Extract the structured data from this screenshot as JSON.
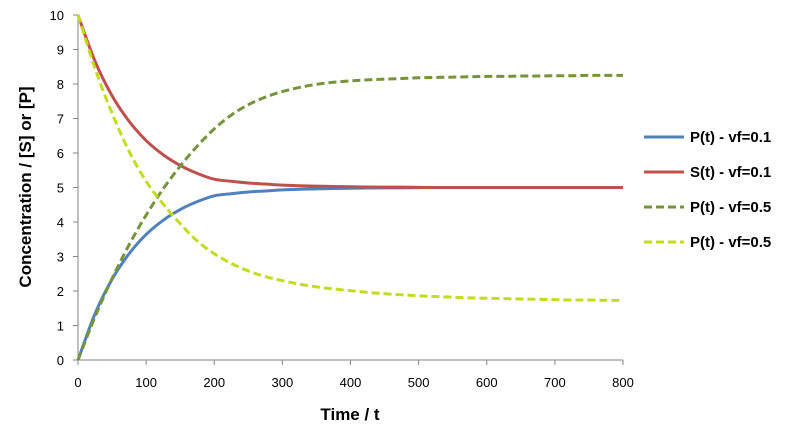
{
  "chart_data": {
    "type": "line",
    "title": "",
    "xlabel": "Time / t",
    "ylabel": "Concentration / [S] or [P]",
    "xlim": [
      0,
      800
    ],
    "ylim": [
      0,
      10
    ],
    "xticks": [
      0,
      100,
      200,
      300,
      400,
      500,
      600,
      700,
      800
    ],
    "yticks": [
      0,
      1,
      2,
      3,
      4,
      5,
      6,
      7,
      8,
      9,
      10
    ],
    "grid": false,
    "legend_position": "right",
    "x": [
      0,
      25,
      50,
      75,
      100,
      125,
      150,
      175,
      200,
      225,
      250,
      275,
      300,
      325,
      350,
      375,
      400,
      425,
      450,
      475,
      500,
      525,
      550,
      575,
      600,
      625,
      650,
      675,
      700,
      725,
      750,
      775,
      800
    ],
    "series": [
      {
        "name": "P(t) - vf=0.1",
        "color": "#4f81bd",
        "dash": "solid",
        "values": [
          0,
          1.34,
          2.34,
          3.08,
          3.64,
          4.05,
          4.36,
          4.59,
          4.76,
          4.82,
          4.87,
          4.9,
          4.93,
          4.95,
          4.96,
          4.97,
          4.98,
          4.985,
          4.99,
          4.99,
          4.995,
          5.0,
          5.0,
          5.0,
          5.0,
          5.0,
          5.0,
          5.0,
          5.0,
          5.0,
          5.0,
          5.0,
          5.0
        ]
      },
      {
        "name": "S(t) - vf=0.1",
        "color": "#c0504d",
        "dash": "solid",
        "values": [
          10,
          8.66,
          7.66,
          6.92,
          6.36,
          5.95,
          5.64,
          5.41,
          5.24,
          5.18,
          5.13,
          5.1,
          5.07,
          5.05,
          5.04,
          5.03,
          5.02,
          5.015,
          5.01,
          5.01,
          5.005,
          5.0,
          5.0,
          5.0,
          5.0,
          5.0,
          5.0,
          5.0,
          5.0,
          5.0,
          5.0,
          5.0,
          5.0
        ]
      },
      {
        "name": "P(t) - vf=0.5",
        "color": "#77933c",
        "dash": "dashed",
        "values": [
          0,
          1.25,
          2.36,
          3.34,
          4.2,
          4.96,
          5.62,
          6.2,
          6.7,
          7.1,
          7.4,
          7.62,
          7.78,
          7.9,
          7.99,
          8.05,
          8.09,
          8.12,
          8.14,
          8.16,
          8.18,
          8.19,
          8.2,
          8.21,
          8.22,
          8.22,
          8.23,
          8.23,
          8.24,
          8.24,
          8.25,
          8.25,
          8.25
        ]
      },
      {
        "name": "P(t) - vf=0.5",
        "color": "#c4dc1e",
        "dash": "dashed",
        "values": [
          10,
          8.45,
          7.15,
          6.05,
          5.18,
          4.52,
          3.95,
          3.45,
          3.08,
          2.8,
          2.58,
          2.42,
          2.3,
          2.2,
          2.12,
          2.06,
          2.01,
          1.96,
          1.92,
          1.89,
          1.86,
          1.84,
          1.82,
          1.8,
          1.79,
          1.78,
          1.77,
          1.76,
          1.75,
          1.74,
          1.74,
          1.73,
          1.73
        ]
      }
    ]
  }
}
